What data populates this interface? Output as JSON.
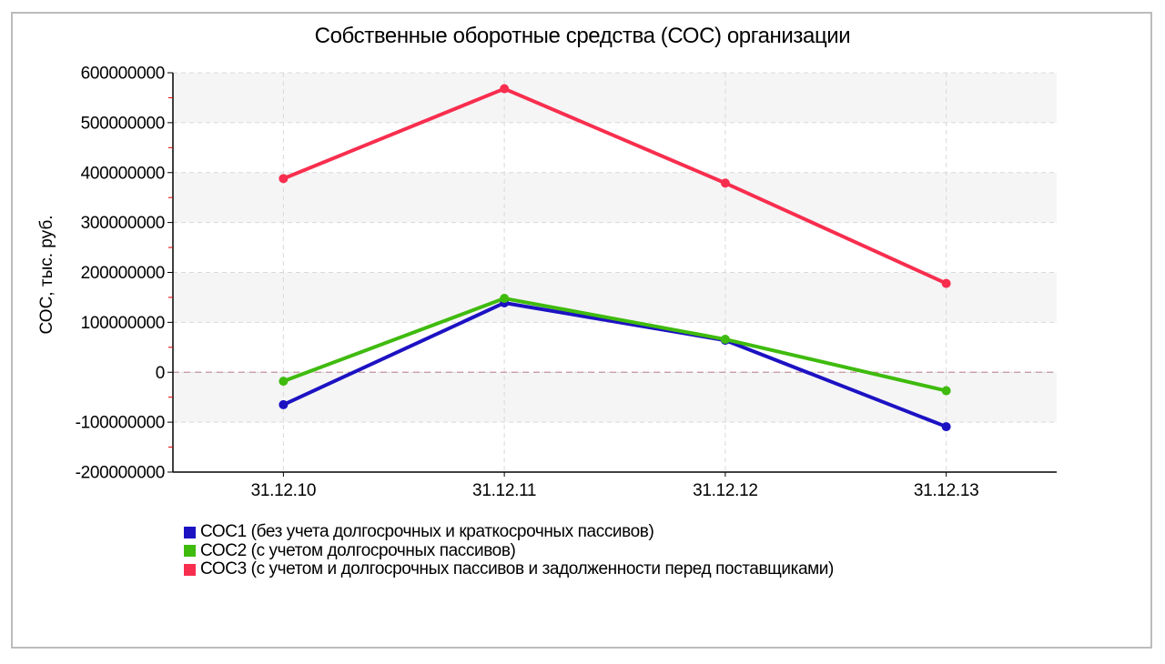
{
  "window": {
    "background": "#ffffff",
    "frame_border_color": "#bcbcbc"
  },
  "chart_data": {
    "type": "line",
    "title": "Собственные оборотные средства (СОС) организации",
    "ylabel": "СОС, тыс. руб.",
    "xlabel": "",
    "categories": [
      "31.12.10",
      "31.12.11",
      "31.12.12",
      "31.12.13"
    ],
    "series": [
      {
        "name": "СОС1 (без учета долгосрочных и краткосрочных пассивов)",
        "color": "#1c12c2",
        "values": [
          -65000000,
          139000000,
          64000000,
          -109000000
        ]
      },
      {
        "name": "СОС2 (с учетом долгосрочных пассивов)",
        "color": "#3fbb0e",
        "values": [
          -18000000,
          148000000,
          66000000,
          -37000000
        ]
      },
      {
        "name": "СОС3 (с учетом и долгосрочных пассивов и задолженности перед поставщиками)",
        "color": "#f82e4e",
        "values": [
          388000000,
          568000000,
          379000000,
          178000000
        ]
      }
    ],
    "ylim": [
      -200000000,
      600000000
    ],
    "ytick_step": 100000000,
    "ytick_labels": [
      "600000000",
      "500000000",
      "400000000",
      "300000000",
      "200000000",
      "100000000",
      "0",
      "-100000000",
      "-200000000"
    ],
    "grid": "dashed",
    "legend_position": "bottom-left",
    "styles": {
      "band_fill": "#f5f5f6",
      "gridline_color": "#d9d9d9",
      "zero_line_color": "#c4939c",
      "axis_color": "#000000",
      "minor_tick_color": "#dd0000",
      "text_color": "#000000"
    }
  }
}
